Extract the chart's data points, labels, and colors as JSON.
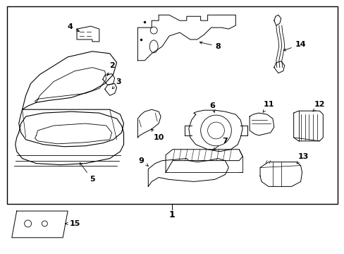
{
  "background_color": "#ffffff",
  "border_color": "#000000",
  "line_color": "#000000",
  "font_size": 8,
  "fig_width": 4.89,
  "fig_height": 3.6,
  "dpi": 100
}
